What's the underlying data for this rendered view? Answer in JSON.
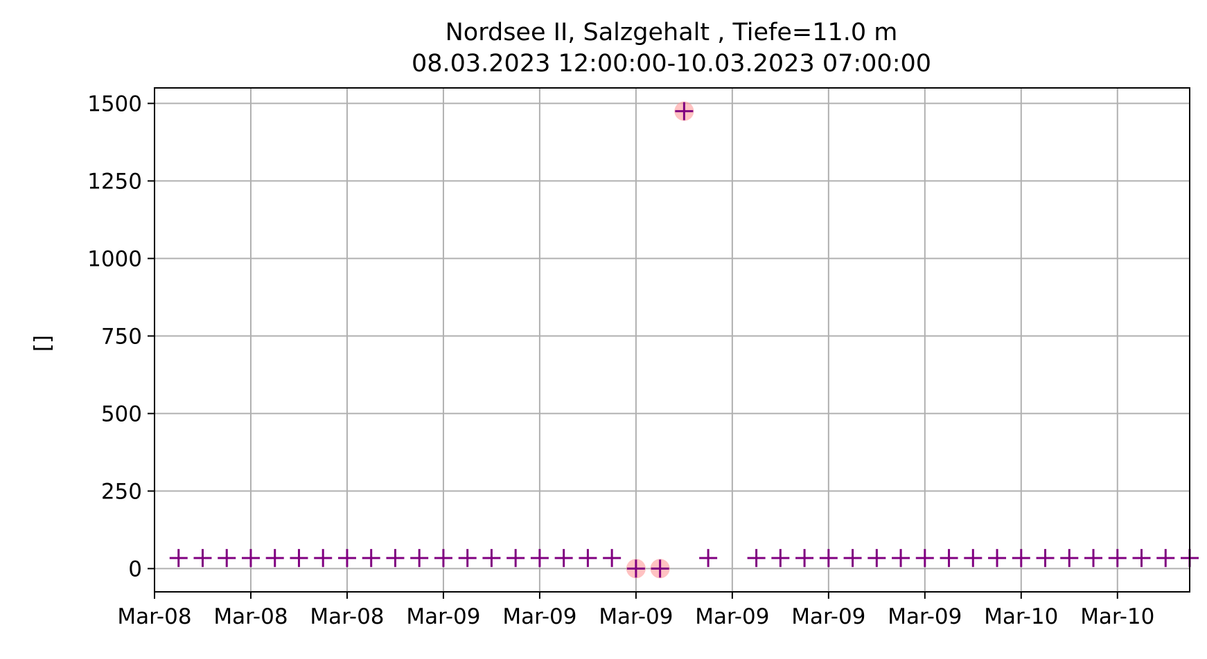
{
  "chart_data": {
    "type": "scatter",
    "title": "Nordsee II, Salzgehalt , Tiefe=11.0 m",
    "subtitle": "08.03.2023 12:00:00-10.03.2023 07:00:00",
    "xlabel": "",
    "ylabel": "[]",
    "xlim": [
      "2023-03-08 12:00",
      "2023-03-10 07:00"
    ],
    "ylim": [
      -75,
      1550
    ],
    "grid": true,
    "colors": {
      "marker": "#800080",
      "flagged": "#ff9999",
      "grid": "#b0b0b0"
    },
    "x_tick_values": [
      "2023-03-08 12:00",
      "2023-03-08 16:00",
      "2023-03-08 20:00",
      "2023-03-09 00:00",
      "2023-03-09 04:00",
      "2023-03-09 08:00",
      "2023-03-09 12:00",
      "2023-03-09 16:00",
      "2023-03-09 20:00",
      "2023-03-10 00:00",
      "2023-03-10 04:00"
    ],
    "x_tick_labels": [
      "Mar-08",
      "Mar-08",
      "Mar-08",
      "Mar-09",
      "Mar-09",
      "Mar-09",
      "Mar-09",
      "Mar-09",
      "Mar-09",
      "Mar-10",
      "Mar-10"
    ],
    "y_ticks": [
      0,
      250,
      500,
      750,
      1000,
      1250,
      1500
    ],
    "y_tick_labels": [
      "0",
      "250",
      "500",
      "750",
      "1000",
      "1250",
      "1500"
    ],
    "series": [
      {
        "marker": "+",
        "points": [
          {
            "x": "2023-03-08 13:00",
            "y": 34
          },
          {
            "x": "2023-03-08 14:00",
            "y": 34
          },
          {
            "x": "2023-03-08 15:00",
            "y": 34
          },
          {
            "x": "2023-03-08 16:00",
            "y": 34
          },
          {
            "x": "2023-03-08 17:00",
            "y": 34
          },
          {
            "x": "2023-03-08 18:00",
            "y": 34
          },
          {
            "x": "2023-03-08 19:00",
            "y": 34
          },
          {
            "x": "2023-03-08 20:00",
            "y": 34
          },
          {
            "x": "2023-03-08 21:00",
            "y": 34
          },
          {
            "x": "2023-03-08 22:00",
            "y": 34
          },
          {
            "x": "2023-03-08 23:00",
            "y": 34
          },
          {
            "x": "2023-03-09 00:00",
            "y": 34
          },
          {
            "x": "2023-03-09 01:00",
            "y": 34
          },
          {
            "x": "2023-03-09 02:00",
            "y": 34
          },
          {
            "x": "2023-03-09 03:00",
            "y": 34
          },
          {
            "x": "2023-03-09 04:00",
            "y": 34
          },
          {
            "x": "2023-03-09 05:00",
            "y": 34
          },
          {
            "x": "2023-03-09 06:00",
            "y": 34
          },
          {
            "x": "2023-03-09 07:00",
            "y": 34
          },
          {
            "x": "2023-03-09 08:00",
            "y": 0
          },
          {
            "x": "2023-03-09 09:00",
            "y": 0
          },
          {
            "x": "2023-03-09 10:00",
            "y": 1475
          },
          {
            "x": "2023-03-09 11:00",
            "y": 34
          },
          {
            "x": "2023-03-09 13:00",
            "y": 34
          },
          {
            "x": "2023-03-09 14:00",
            "y": 34
          },
          {
            "x": "2023-03-09 15:00",
            "y": 34
          },
          {
            "x": "2023-03-09 16:00",
            "y": 34
          },
          {
            "x": "2023-03-09 17:00",
            "y": 34
          },
          {
            "x": "2023-03-09 18:00",
            "y": 34
          },
          {
            "x": "2023-03-09 19:00",
            "y": 34
          },
          {
            "x": "2023-03-09 20:00",
            "y": 34
          },
          {
            "x": "2023-03-09 21:00",
            "y": 34
          },
          {
            "x": "2023-03-09 22:00",
            "y": 34
          },
          {
            "x": "2023-03-09 23:00",
            "y": 34
          },
          {
            "x": "2023-03-10 00:00",
            "y": 34
          },
          {
            "x": "2023-03-10 01:00",
            "y": 34
          },
          {
            "x": "2023-03-10 02:00",
            "y": 34
          },
          {
            "x": "2023-03-10 03:00",
            "y": 34
          },
          {
            "x": "2023-03-10 04:00",
            "y": 34
          },
          {
            "x": "2023-03-10 05:00",
            "y": 34
          },
          {
            "x": "2023-03-10 06:00",
            "y": 34
          },
          {
            "x": "2023-03-10 07:00",
            "y": 34
          }
        ]
      },
      {
        "marker": "circle",
        "points": [
          {
            "x": "2023-03-09 08:00",
            "y": 0
          },
          {
            "x": "2023-03-09 09:00",
            "y": 0
          },
          {
            "x": "2023-03-09 10:00",
            "y": 1475
          }
        ]
      }
    ]
  }
}
